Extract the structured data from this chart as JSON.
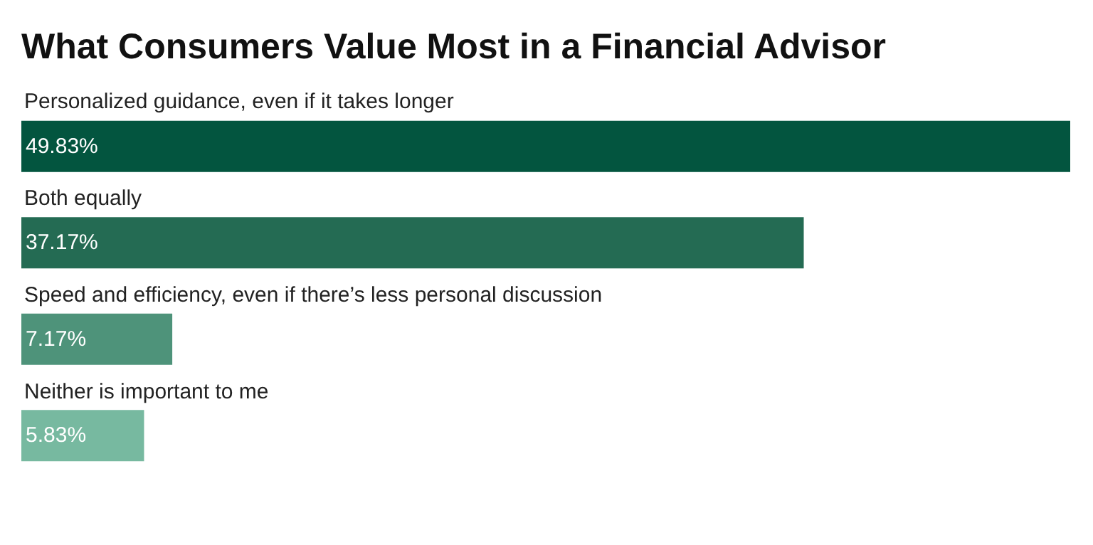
{
  "chart_data": {
    "type": "bar",
    "orientation": "horizontal",
    "title": "What Consumers Value Most in a Financial Advisor",
    "categories": [
      "Personalized guidance, even if it takes longer",
      "Both equally",
      "Speed and efficiency, even if there’s less personal discussion",
      "Neither is important to me"
    ],
    "values": [
      49.83,
      37.17,
      7.17,
      5.83
    ],
    "value_labels": [
      "49.83%",
      "37.17%",
      "7.17%",
      "5.83%"
    ],
    "colors": [
      "#03553f",
      "#246b53",
      "#4e937a",
      "#77b9a0"
    ],
    "data_labels": true
  }
}
